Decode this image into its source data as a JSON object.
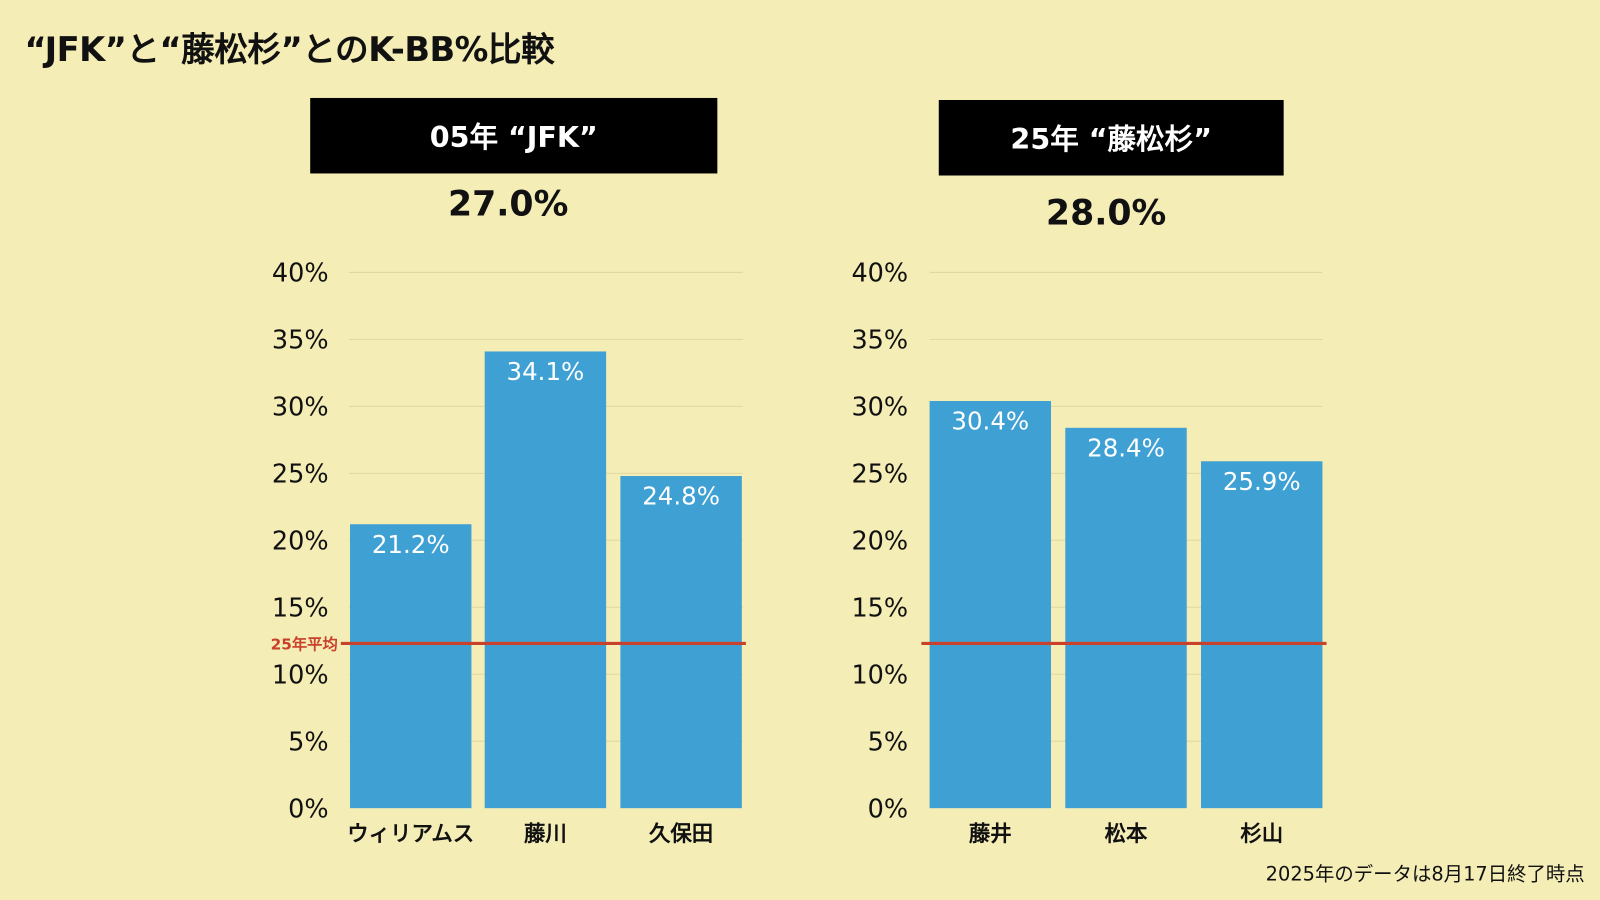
{
  "title": "“JFK”と“藤松杉”とのK-BB%比較",
  "footnote": "2025年のデータは8月17日終了時点",
  "colors": {
    "background": "#f4edb6",
    "bar": "#3ea0d3",
    "average_line": "#c9412a",
    "header_bg": "#000000"
  },
  "chart_data": [
    {
      "type": "bar",
      "title": "05年 “JFK”",
      "total_label": "27.0%",
      "categories": [
        "ウィリアムス",
        "藤川",
        "久保田"
      ],
      "values": [
        21.2,
        34.1,
        24.8
      ],
      "value_labels": [
        "21.2%",
        "34.1%",
        "24.8%"
      ],
      "ylim": [
        0,
        40
      ],
      "yticks": [
        "0%",
        "5%",
        "10%",
        "15%",
        "20%",
        "25%",
        "30%",
        "35%",
        "40%"
      ],
      "reference_line": {
        "label": "25年平均",
        "value": 12.3
      },
      "grid": true
    },
    {
      "type": "bar",
      "title": "25年 “藤松杉”",
      "total_label": "28.0%",
      "categories": [
        "藤井",
        "松本",
        "杉山"
      ],
      "values": [
        30.4,
        28.4,
        25.9
      ],
      "value_labels": [
        "30.4%",
        "28.4%",
        "25.9%"
      ],
      "ylim": [
        0,
        40
      ],
      "yticks": [
        "0%",
        "5%",
        "10%",
        "15%",
        "20%",
        "25%",
        "30%",
        "35%",
        "40%"
      ],
      "reference_line": {
        "label": "",
        "value": 12.3
      },
      "grid": true
    }
  ]
}
